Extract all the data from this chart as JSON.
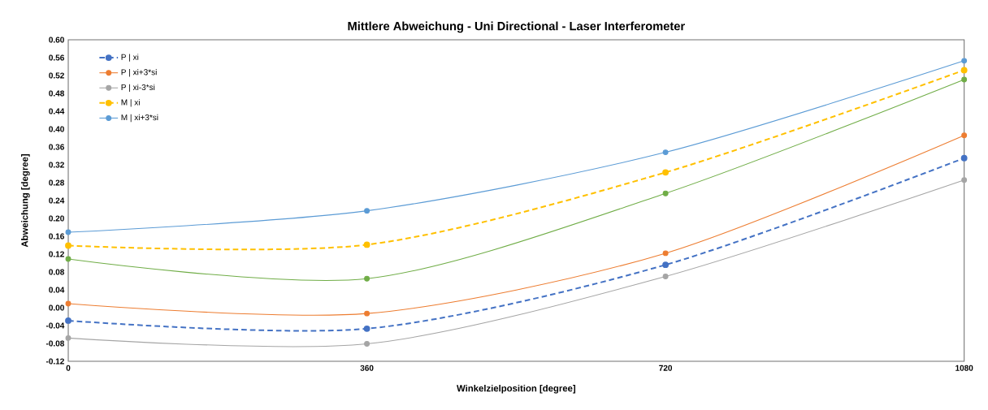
{
  "chart_data": {
    "type": "line",
    "title": "Mittlere Abweichung - Uni Directional - Laser Interferometer",
    "xlabel": "Winkelzielposition [degree]",
    "ylabel": "Abweichung [degree]",
    "x": [
      0,
      360,
      720,
      1080
    ],
    "xlim": [
      0,
      1080
    ],
    "xticks": [
      0,
      360,
      720,
      1080
    ],
    "ylim": [
      -0.12,
      0.6
    ],
    "yticks": [
      {
        "value": -0.12,
        "label": "-0.12"
      },
      {
        "value": -0.08,
        "label": "-0.08"
      },
      {
        "value": -0.04,
        "label": "-0.04"
      },
      {
        "value": 0,
        "label": "0.00"
      },
      {
        "value": 0.04,
        "label": "0.04"
      },
      {
        "value": 0.08,
        "label": "0.08"
      },
      {
        "value": 0.12,
        "label": "0.12"
      },
      {
        "value": 0.16,
        "label": "0.16"
      },
      {
        "value": 0.2,
        "label": "0.20"
      },
      {
        "value": 0.24,
        "label": "0.24"
      },
      {
        "value": 0.28,
        "label": "0.28"
      },
      {
        "value": 0.32,
        "label": "0.32"
      },
      {
        "value": 0.36,
        "label": "0.36"
      },
      {
        "value": 0.4,
        "label": "0.40"
      },
      {
        "value": 0.44,
        "label": "0.44"
      },
      {
        "value": 0.48,
        "label": "0.48"
      },
      {
        "value": 0.52,
        "label": "0.52"
      },
      {
        "value": 0.56,
        "label": "0.56"
      },
      {
        "value": 0.6,
        "label": "0.60"
      }
    ],
    "marker": "circle",
    "grid": false,
    "legend": "top left",
    "series": [
      {
        "name": "P | xi",
        "color": "#4472c4",
        "line_style": "dashed",
        "values": [
          -0.029,
          -0.047,
          0.096,
          0.335
        ]
      },
      {
        "name": "P | xi+3*si",
        "color": "#ed7d31",
        "line_style": "solid",
        "values": [
          0.009,
          -0.013,
          0.122,
          0.386
        ]
      },
      {
        "name": "P | xi-3*si",
        "color": "#a5a5a5",
        "line_style": "solid",
        "values": [
          -0.068,
          -0.081,
          0.07,
          0.286
        ]
      },
      {
        "name": "M | xi",
        "color": "#ffc000",
        "line_style": "dashed",
        "values": [
          0.139,
          0.141,
          0.303,
          0.532
        ]
      },
      {
        "name": "M | xi+3*si",
        "color": "#5b9bd5",
        "line_style": "solid",
        "values": [
          0.169,
          0.217,
          0.348,
          0.553
        ]
      },
      {
        "color": "#70ad47",
        "line_style": "solid",
        "values": [
          0.109,
          0.065,
          0.256,
          0.511
        ]
      }
    ]
  }
}
